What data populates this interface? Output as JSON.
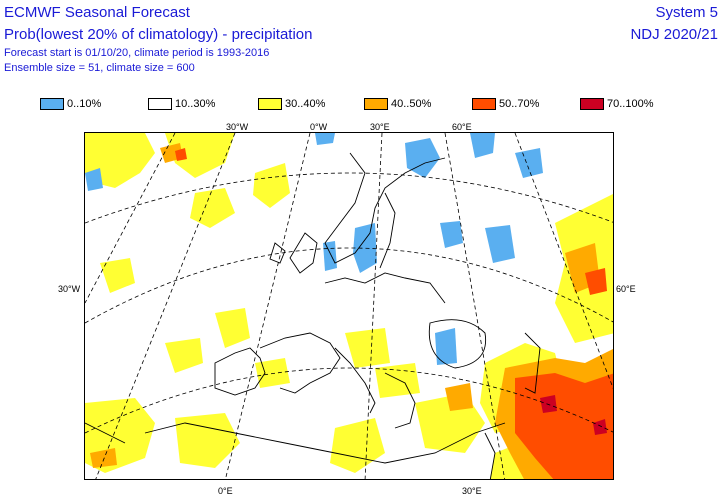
{
  "header": {
    "title": "ECMWF Seasonal Forecast",
    "subtitle": "Prob(lowest 20% of climatology) - precipitation",
    "forecast_info": "Forecast start is 01/10/20, climate period is 1993-2016",
    "ensemble_info": "Ensemble size = 51, climate size = 600",
    "system": "System 5",
    "period": "NDJ 2020/21"
  },
  "legend": [
    {
      "label": "0..10%",
      "color": "#5aaff0"
    },
    {
      "label": "10..30%",
      "color": "#ffffff"
    },
    {
      "label": "30..40%",
      "color": "#ffff33"
    },
    {
      "label": "40..50%",
      "color": "#ffaa00"
    },
    {
      "label": "50..70%",
      "color": "#ff4d00"
    },
    {
      "label": "70..100%",
      "color": "#cc0022"
    }
  ],
  "coordinate_labels": {
    "top": [
      "30°W",
      "0°W",
      "30°E",
      "60°E"
    ],
    "left": "30°W",
    "right": "60°E",
    "bottom": [
      "0°E",
      "30°E"
    ]
  }
}
